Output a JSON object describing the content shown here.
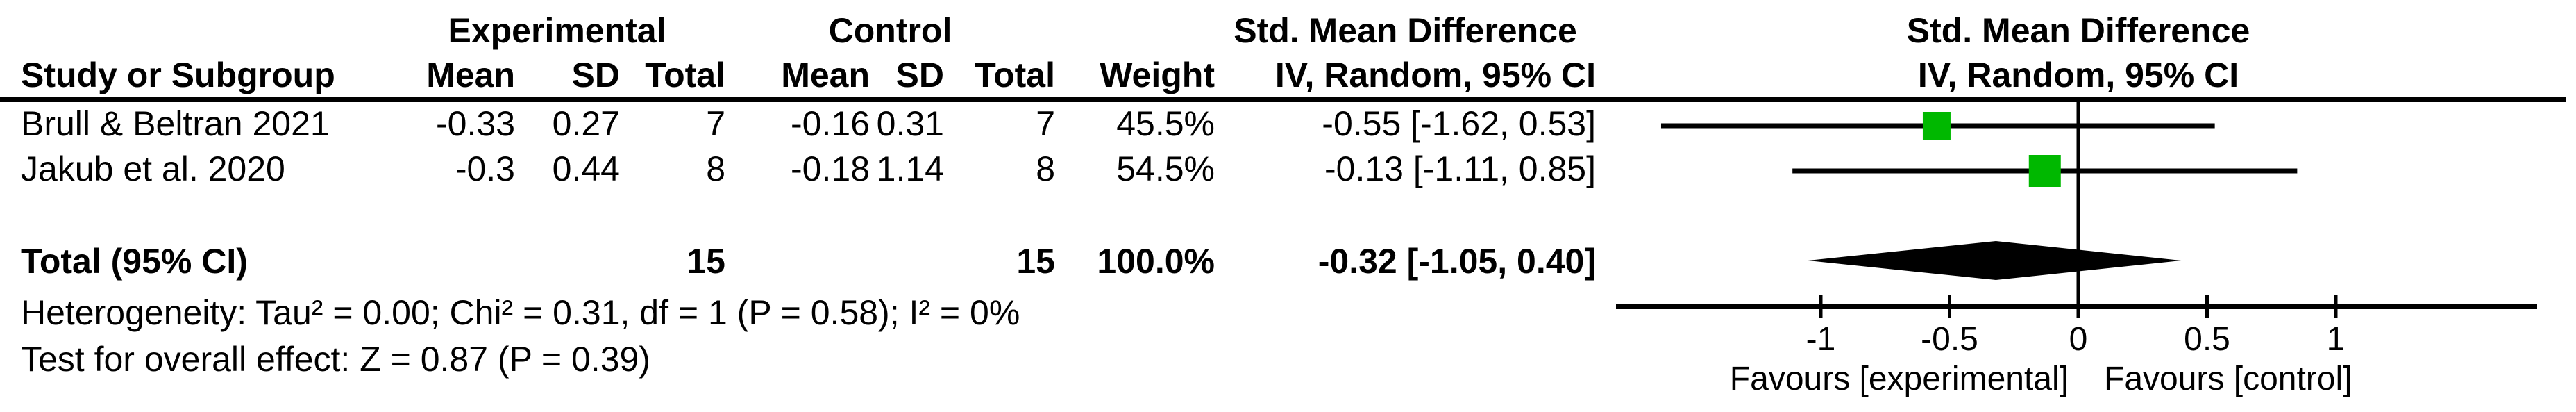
{
  "table": {
    "group_headers": {
      "experimental": "Experimental",
      "control": "Control",
      "smd": "Std. Mean Difference"
    },
    "col_headers": {
      "study": "Study or Subgroup",
      "exp_mean": "Mean",
      "exp_sd": "SD",
      "exp_total": "Total",
      "ctrl_mean": "Mean",
      "ctrl_sd": "SD",
      "ctrl_total": "Total",
      "weight": "Weight",
      "ci": "IV, Random, 95% CI"
    },
    "rows": [
      {
        "study": "Brull & Beltran 2021",
        "exp_mean": "-0.33",
        "exp_sd": "0.27",
        "exp_total": "7",
        "ctrl_mean": "-0.16",
        "ctrl_sd": "0.31",
        "ctrl_total": "7",
        "weight": "45.5%",
        "ci": "-0.55 [-1.62, 0.53]"
      },
      {
        "study": "Jakub et al. 2020",
        "exp_mean": "-0.3",
        "exp_sd": "0.44",
        "exp_total": "8",
        "ctrl_mean": "-0.18",
        "ctrl_sd": "1.14",
        "ctrl_total": "8",
        "weight": "54.5%",
        "ci": "-0.13 [-1.11, 0.85]"
      }
    ],
    "total_row": {
      "label": "Total (95% CI)",
      "exp_total": "15",
      "ctrl_total": "15",
      "weight": "100.0%",
      "ci": "-0.32 [-1.05, 0.40]"
    },
    "heterogeneity": "Heterogeneity: Tau² = 0.00; Chi² = 0.31, df = 1 (P = 0.58); I² = 0%",
    "overall_effect": "Test for overall effect: Z = 0.87 (P = 0.39)"
  },
  "plot": {
    "header_line1": "Std. Mean Difference",
    "header_line2": "IV, Random, 95% CI",
    "marker_color": "#00b800",
    "line_color": "#000000"
  },
  "chart_data": {
    "type": "forest",
    "effect_measure": "Std. Mean Difference",
    "model": "IV, Random, 95% CI",
    "studies": [
      {
        "name": "Brull & Beltran 2021",
        "exp_mean": -0.33,
        "exp_sd": 0.27,
        "exp_total": 7,
        "ctrl_mean": -0.16,
        "ctrl_sd": 0.31,
        "ctrl_total": 7,
        "weight_pct": 45.5,
        "smd": -0.55,
        "ci_low": -1.62,
        "ci_high": 0.53
      },
      {
        "name": "Jakub et al. 2020",
        "exp_mean": -0.3,
        "exp_sd": 0.44,
        "exp_total": 8,
        "ctrl_mean": -0.18,
        "ctrl_sd": 1.14,
        "ctrl_total": 8,
        "weight_pct": 54.5,
        "smd": -0.13,
        "ci_low": -1.11,
        "ci_high": 0.85
      }
    ],
    "total": {
      "label": "Total (95% CI)",
      "exp_total": 15,
      "ctrl_total": 15,
      "weight_pct": 100.0,
      "smd": -0.32,
      "ci_low": -1.05,
      "ci_high": 0.4
    },
    "heterogeneity": {
      "tau2": 0.0,
      "chi2": 0.31,
      "df": 1,
      "p": 0.58,
      "i2_pct": 0
    },
    "overall_effect": {
      "z": 0.87,
      "p": 0.39
    },
    "axis": {
      "ticks": [
        -1,
        -0.5,
        0,
        0.5,
        1
      ],
      "xlim": [
        -1.8,
        1.78
      ],
      "label_left": "Favours [experimental]",
      "label_right": "Favours [control]"
    }
  }
}
